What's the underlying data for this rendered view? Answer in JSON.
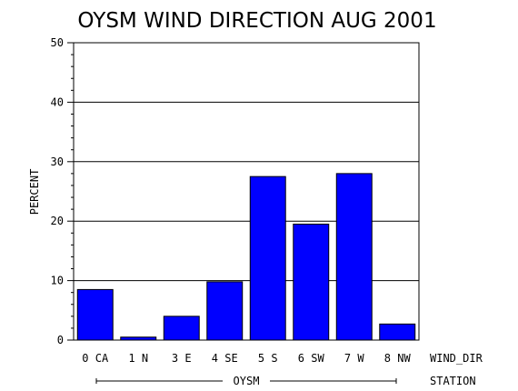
{
  "chart_data": {
    "type": "bar",
    "title": "OYSM WIND DIRECTION AUG 2001",
    "ylabel": "PERCENT",
    "x_axis_name": "WIND_DIR",
    "group_axis_name": "STATION",
    "group_label": "OYSM",
    "categories": [
      "0 CA",
      "1 N",
      "3 E",
      "4 SE",
      "5 S",
      "6 SW",
      "7 W",
      "8 NW"
    ],
    "values": [
      8.5,
      0.5,
      4.0,
      9.8,
      27.5,
      19.5,
      28.0,
      2.7
    ],
    "ylim": [
      0,
      50
    ],
    "yticks": [
      "0",
      "10",
      "20",
      "30",
      "40",
      "50"
    ],
    "grid": true,
    "bar_color": "#0000ff"
  }
}
